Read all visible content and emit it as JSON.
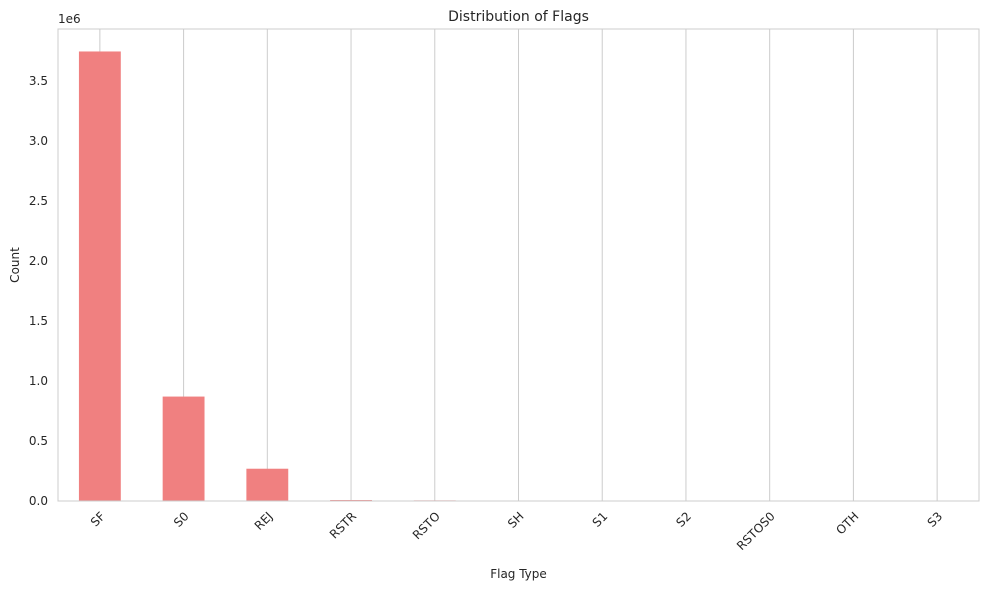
{
  "chart_data": {
    "type": "bar",
    "title": "Distribution of Flags",
    "xlabel": "Flag Type",
    "ylabel": "Count",
    "y_offset_label": "1e6",
    "categories": [
      "SF",
      "S0",
      "REJ",
      "RSTR",
      "RSTO",
      "SH",
      "S1",
      "S2",
      "RSTOS0",
      "OTH",
      "S3"
    ],
    "values": [
      3744328,
      869829,
      268874,
      8094,
      5344,
      1040,
      532,
      161,
      122,
      57,
      50
    ],
    "ylim": [
      0,
      3931544
    ],
    "yticks": [
      0.0,
      0.5,
      1.0,
      1.5,
      2.0,
      2.5,
      3.0,
      3.5
    ],
    "grid": "vertical",
    "colors": {
      "bar": "#F08080",
      "grid": "#CCCCCC",
      "spine": "#CCCCCC",
      "text": "#262626"
    }
  }
}
